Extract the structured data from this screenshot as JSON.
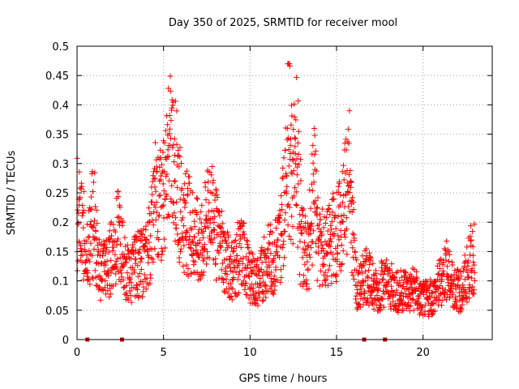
{
  "chart_data": {
    "type": "scatter",
    "title": "Day 350 of 2025, SRMTID for receiver mool",
    "xlabel": "GPS time / hours",
    "ylabel": "SRMTID / TECUs",
    "xlim": [
      0,
      24
    ],
    "ylim": [
      0,
      0.5
    ],
    "x_ticks": [
      0,
      5,
      10,
      15,
      20
    ],
    "y_ticks": [
      0,
      0.05,
      0.1,
      0.15,
      0.2,
      0.25,
      0.3,
      0.35,
      0.4,
      0.45,
      0.5
    ],
    "x_tick_labels": [
      "0",
      "5",
      "10",
      "15",
      "20"
    ],
    "y_tick_labels": [
      "0",
      "0.05",
      "0.1",
      "0.15",
      "0.2",
      "0.25",
      "0.3",
      "0.35",
      "0.4",
      "0.45",
      "0.5"
    ],
    "grid": true,
    "marker": "plus",
    "colors": {
      "points": "#ff0000",
      "zero_markers": "#cc0000",
      "grid": "#a0a0a0",
      "axes": "#000000"
    },
    "zero_gap_markers_x": [
      0.6,
      2.6,
      16.6,
      17.8
    ],
    "series": [
      {
        "name": "SRMTID",
        "profile": [
          [
            0.0,
            0.21
          ],
          [
            0.3,
            0.18
          ],
          [
            0.6,
            0.17
          ],
          [
            0.9,
            0.13
          ],
          [
            1.2,
            0.11
          ],
          [
            1.5,
            0.13
          ],
          [
            1.8,
            0.12
          ],
          [
            2.1,
            0.16
          ],
          [
            2.4,
            0.18
          ],
          [
            2.7,
            0.13
          ],
          [
            3.0,
            0.11
          ],
          [
            3.3,
            0.12
          ],
          [
            3.6,
            0.13
          ],
          [
            3.9,
            0.13
          ],
          [
            4.2,
            0.16
          ],
          [
            4.5,
            0.19
          ],
          [
            4.8,
            0.21
          ],
          [
            5.1,
            0.25
          ],
          [
            5.4,
            0.29
          ],
          [
            5.7,
            0.27
          ],
          [
            6.0,
            0.22
          ],
          [
            6.3,
            0.2
          ],
          [
            6.6,
            0.19
          ],
          [
            6.9,
            0.17
          ],
          [
            7.2,
            0.16
          ],
          [
            7.5,
            0.2
          ],
          [
            7.8,
            0.19
          ],
          [
            8.1,
            0.17
          ],
          [
            8.4,
            0.15
          ],
          [
            8.7,
            0.13
          ],
          [
            9.0,
            0.12
          ],
          [
            9.3,
            0.14
          ],
          [
            9.6,
            0.15
          ],
          [
            9.9,
            0.11
          ],
          [
            10.2,
            0.1
          ],
          [
            10.5,
            0.1
          ],
          [
            10.8,
            0.12
          ],
          [
            11.1,
            0.14
          ],
          [
            11.4,
            0.14
          ],
          [
            11.7,
            0.17
          ],
          [
            12.0,
            0.2
          ],
          [
            12.3,
            0.26
          ],
          [
            12.6,
            0.21
          ],
          [
            12.9,
            0.16
          ],
          [
            13.2,
            0.15
          ],
          [
            13.5,
            0.13
          ],
          [
            13.8,
            0.14
          ],
          [
            14.1,
            0.16
          ],
          [
            14.4,
            0.15
          ],
          [
            14.7,
            0.17
          ],
          [
            15.0,
            0.18
          ],
          [
            15.3,
            0.2
          ],
          [
            15.6,
            0.24
          ],
          [
            15.9,
            0.19
          ],
          [
            16.2,
            0.08
          ],
          [
            16.5,
            0.1
          ],
          [
            16.8,
            0.11
          ],
          [
            17.1,
            0.09
          ],
          [
            17.4,
            0.08
          ],
          [
            17.7,
            0.1
          ],
          [
            18.0,
            0.09
          ],
          [
            18.3,
            0.09
          ],
          [
            18.6,
            0.08
          ],
          [
            18.9,
            0.09
          ],
          [
            19.2,
            0.08
          ],
          [
            19.5,
            0.09
          ],
          [
            19.8,
            0.07
          ],
          [
            20.1,
            0.07
          ],
          [
            20.4,
            0.07
          ],
          [
            20.7,
            0.08
          ],
          [
            21.0,
            0.1
          ],
          [
            21.3,
            0.12
          ],
          [
            21.6,
            0.1
          ],
          [
            21.9,
            0.09
          ],
          [
            22.2,
            0.08
          ],
          [
            22.5,
            0.11
          ],
          [
            22.8,
            0.14
          ],
          [
            23.0,
            0.14
          ]
        ],
        "peaks": [
          [
            4.6,
            0.32
          ],
          [
            5.5,
            0.39
          ],
          [
            7.8,
            0.28
          ],
          [
            12.2,
            0.46
          ],
          [
            12.7,
            0.43
          ],
          [
            13.7,
            0.38
          ],
          [
            15.7,
            0.34
          ],
          [
            1.0,
            0.28
          ],
          [
            0.0,
            0.22
          ]
        ]
      }
    ]
  }
}
